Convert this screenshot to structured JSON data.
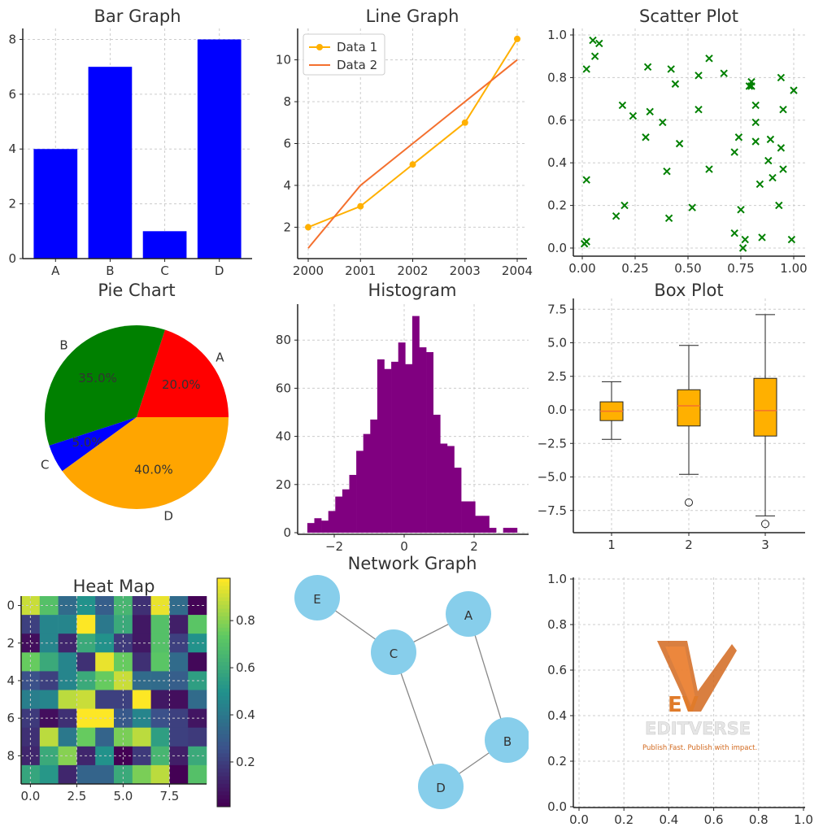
{
  "chart_data": [
    {
      "type": "bar",
      "title": "Bar Graph",
      "categories": [
        "A",
        "B",
        "C",
        "D"
      ],
      "values": [
        4,
        7,
        1,
        8
      ],
      "ylim": [
        0,
        8.4
      ],
      "yticks": [
        0,
        2,
        4,
        6,
        8
      ],
      "color": "#0000FF",
      "grid": true
    },
    {
      "type": "line",
      "title": "Line Graph",
      "x": [
        2000,
        2001,
        2002,
        2003,
        2004
      ],
      "series": [
        {
          "name": "Data 1",
          "values": [
            2,
            3,
            5,
            7,
            11
          ],
          "color": "#FFB000",
          "marker": "circle"
        },
        {
          "name": "Data 2",
          "values": [
            1,
            4,
            6,
            8,
            10
          ],
          "color": "#F4702E",
          "marker": "none"
        }
      ],
      "xticks": [
        2000,
        2001,
        2002,
        2003,
        2004
      ],
      "yticks": [
        2,
        4,
        6,
        8,
        10
      ],
      "ylim": [
        0.5,
        11.5
      ],
      "legend": "top-left",
      "grid": true
    },
    {
      "type": "scatter",
      "title": "Scatter Plot",
      "color": "#008000",
      "marker": "x",
      "xlim": [
        -0.04,
        1.04
      ],
      "ylim": [
        -0.04,
        1.03
      ],
      "xticks": [
        "0.00",
        "0.25",
        "0.50",
        "0.75",
        "1.00"
      ],
      "yticks": [
        "0.0",
        "0.2",
        "0.4",
        "0.6",
        "0.8",
        "1.0"
      ],
      "grid": true,
      "points": [
        [
          0.05,
          0.975
        ],
        [
          0.08,
          0.96
        ],
        [
          0.06,
          0.9
        ],
        [
          0.02,
          0.84
        ],
        [
          0.02,
          0.32
        ],
        [
          0.01,
          0.02
        ],
        [
          0.02,
          0.03
        ],
        [
          0.19,
          0.67
        ],
        [
          0.24,
          0.62
        ],
        [
          0.16,
          0.15
        ],
        [
          0.2,
          0.2
        ],
        [
          0.31,
          0.85
        ],
        [
          0.32,
          0.64
        ],
        [
          0.3,
          0.52
        ],
        [
          0.38,
          0.59
        ],
        [
          0.4,
          0.36
        ],
        [
          0.42,
          0.84
        ],
        [
          0.44,
          0.77
        ],
        [
          0.46,
          0.49
        ],
        [
          0.41,
          0.14
        ],
        [
          0.52,
          0.19
        ],
        [
          0.55,
          0.81
        ],
        [
          0.55,
          0.65
        ],
        [
          0.6,
          0.89
        ],
        [
          0.6,
          0.37
        ],
        [
          0.67,
          0.82
        ],
        [
          0.74,
          0.52
        ],
        [
          0.72,
          0.45
        ],
        [
          0.75,
          0.18
        ],
        [
          0.72,
          0.07
        ],
        [
          0.77,
          0.04
        ],
        [
          0.76,
          0.0
        ],
        [
          0.79,
          0.76
        ],
        [
          0.8,
          0.78
        ],
        [
          0.8,
          0.76
        ],
        [
          0.82,
          0.67
        ],
        [
          0.82,
          0.59
        ],
        [
          0.82,
          0.5
        ],
        [
          0.84,
          0.3
        ],
        [
          0.85,
          0.05
        ],
        [
          0.88,
          0.41
        ],
        [
          0.89,
          0.51
        ],
        [
          0.9,
          0.33
        ],
        [
          0.94,
          0.8
        ],
        [
          0.95,
          0.65
        ],
        [
          0.94,
          0.47
        ],
        [
          0.95,
          0.37
        ],
        [
          0.93,
          0.2
        ],
        [
          1.0,
          0.74
        ],
        [
          0.99,
          0.04
        ]
      ]
    },
    {
      "type": "pie",
      "title": "Pie Chart",
      "slices": [
        {
          "label": "A",
          "value": 20,
          "pct": "20.0%",
          "color": "#FF0000"
        },
        {
          "label": "B",
          "value": 35,
          "pct": "35.0%",
          "color": "#008000"
        },
        {
          "label": "C",
          "value": 5,
          "pct": "5.0%",
          "color": "#0000FF"
        },
        {
          "label": "D",
          "value": 40,
          "pct": "40.0%",
          "color": "#FFA500"
        }
      ]
    },
    {
      "type": "bar",
      "subtype": "histogram",
      "title": "Histogram",
      "color": "#800080",
      "bin_start": -2.77,
      "bin_width": 0.2,
      "counts": [
        4,
        6,
        5,
        9,
        15,
        18,
        24,
        34,
        41,
        47,
        72,
        68,
        71,
        79,
        70,
        90,
        77,
        75,
        49,
        37,
        36,
        27,
        13,
        13,
        7,
        7,
        2,
        0,
        2,
        2
      ],
      "xticks": [
        "−2",
        "0",
        "2"
      ],
      "yticks": [
        0,
        20,
        40,
        60,
        80
      ],
      "ylim": [
        0,
        94
      ],
      "grid": true
    },
    {
      "type": "box",
      "title": "Box Plot",
      "categories": [
        "1",
        "2",
        "3"
      ],
      "color": "#FFB000",
      "median_color": "#F4702E",
      "boxes": [
        {
          "whislo": -2.2,
          "q1": -0.8,
          "med": -0.1,
          "q3": 0.6,
          "whishi": 2.1,
          "fliers": []
        },
        {
          "whislo": -4.8,
          "q1": -1.2,
          "med": 0.3,
          "q3": 1.5,
          "whishi": 4.8,
          "fliers": [
            -6.9
          ]
        },
        {
          "whislo": -7.9,
          "q1": -1.95,
          "med": -0.05,
          "q3": 2.35,
          "whishi": 7.1,
          "fliers": [
            -8.5
          ]
        }
      ],
      "yticks": [
        "7.5",
        "5.0",
        "2.5",
        "0.0",
        "−2.5",
        "−5.0",
        "−7.5"
      ],
      "ylim": [
        -9.2,
        8.3
      ],
      "grid": true
    },
    {
      "type": "heatmap",
      "title": "Heat Map",
      "colormap": "viridis",
      "xticks": [
        "0.0",
        "2.5",
        "5.0",
        "7.5"
      ],
      "yticks": [
        "0",
        "2",
        "4",
        "6",
        "8"
      ],
      "colorbar_ticks": [
        "0.8",
        "0.6",
        "0.4",
        "0.2"
      ],
      "clim": [
        0.01,
        0.98
      ],
      "values": [
        [
          0.9,
          0.7,
          0.35,
          0.5,
          0.3,
          0.65,
          0.15,
          0.95,
          0.35,
          0.02
        ],
        [
          0.2,
          0.45,
          0.45,
          0.98,
          0.4,
          0.6,
          0.08,
          0.7,
          0.1,
          0.72
        ],
        [
          0.05,
          0.45,
          0.12,
          0.6,
          0.5,
          0.18,
          0.08,
          0.7,
          0.2,
          0.5
        ],
        [
          0.75,
          0.6,
          0.45,
          0.15,
          0.95,
          0.75,
          0.15,
          0.72,
          0.35,
          0.03
        ],
        [
          0.25,
          0.2,
          0.45,
          0.6,
          0.75,
          0.9,
          0.35,
          0.35,
          0.3,
          0.55
        ],
        [
          0.42,
          0.45,
          0.88,
          0.9,
          0.2,
          0.2,
          0.98,
          0.08,
          0.05,
          0.35
        ],
        [
          0.18,
          0.05,
          0.15,
          0.98,
          0.98,
          0.28,
          0.45,
          0.25,
          0.2,
          0.07
        ],
        [
          0.15,
          0.88,
          0.4,
          0.75,
          0.32,
          0.78,
          0.88,
          0.55,
          0.2,
          0.18
        ],
        [
          0.12,
          0.6,
          0.8,
          0.12,
          0.5,
          0.01,
          0.18,
          0.65,
          0.1,
          0.6
        ],
        [
          0.58,
          0.52,
          0.12,
          0.32,
          0.32,
          0.6,
          0.78,
          0.88,
          0.01,
          0.7
        ]
      ]
    },
    {
      "type": "network",
      "title": "Network Graph",
      "node_color": "#87CEEB",
      "nodes": [
        "E",
        "C",
        "A",
        "B",
        "D"
      ],
      "edges": [
        [
          "E",
          "C"
        ],
        [
          "C",
          "A"
        ],
        [
          "A",
          "B"
        ],
        [
          "B",
          "D"
        ],
        [
          "D",
          "C"
        ]
      ]
    },
    {
      "type": "empty",
      "xticks": [
        "0.0",
        "0.2",
        "0.4",
        "0.6",
        "0.8",
        "1.0"
      ],
      "yticks": [
        "0.0",
        "0.2",
        "0.4",
        "0.6",
        "0.8",
        "1.0"
      ],
      "grid": true
    }
  ],
  "logo": {
    "letters": "EV",
    "name": "EDITVERSE",
    "tagline": "Publish Fast. Publish with impact."
  }
}
